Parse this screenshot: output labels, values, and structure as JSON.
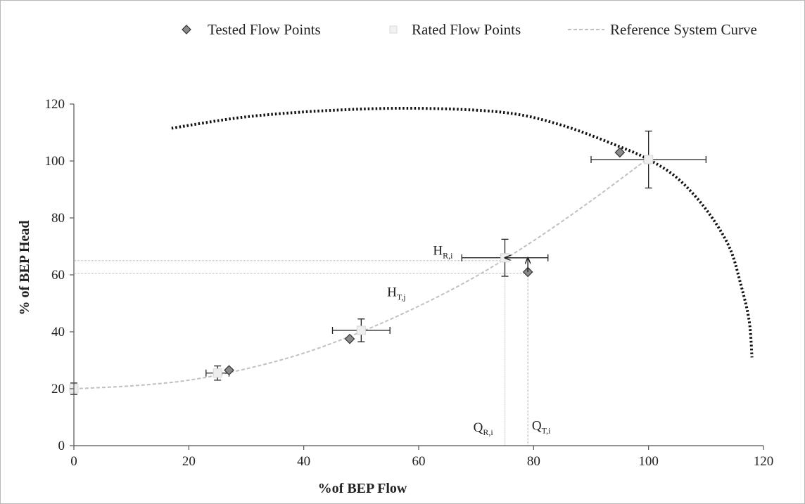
{
  "chart_data": {
    "type": "scatter",
    "xlabel": "%of BEP Flow",
    "ylabel": "% of BEP Head",
    "xlim": [
      0,
      120
    ],
    "ylim": [
      0,
      120
    ],
    "x_ticks": [
      0,
      20,
      40,
      60,
      80,
      100,
      120
    ],
    "y_ticks": [
      0,
      20,
      40,
      60,
      80,
      100,
      120
    ],
    "grid": false,
    "legend_position": "top",
    "series": [
      {
        "name": "Tested Flow Points",
        "marker": "diamond",
        "color": "#8a8a8a",
        "points": [
          {
            "x": 27,
            "y": 26.5
          },
          {
            "x": 48,
            "y": 37.5
          },
          {
            "x": 79,
            "y": 61
          },
          {
            "x": 95,
            "y": 103
          }
        ]
      },
      {
        "name": "Rated Flow Points",
        "marker": "square",
        "color": "#d8d8d8",
        "points": [
          {
            "x": 0,
            "y": 20,
            "x_err": 0,
            "y_err": 2
          },
          {
            "x": 25,
            "y": 25.5,
            "x_err": 2,
            "y_err": 2.5
          },
          {
            "x": 50,
            "y": 40.5,
            "x_err": 5,
            "y_err": 4
          },
          {
            "x": 75,
            "y": 66,
            "x_err": 7.5,
            "y_err": 6.5
          },
          {
            "x": 100,
            "y": 100.5,
            "x_err": 10,
            "y_err": 10
          }
        ]
      },
      {
        "name": "Reference System Curve",
        "line": "dashed",
        "color": "#c0c0c0",
        "points": [
          {
            "x": 0,
            "y": 20
          },
          {
            "x": 10,
            "y": 21
          },
          {
            "x": 20,
            "y": 23
          },
          {
            "x": 30,
            "y": 27
          },
          {
            "x": 40,
            "y": 32.5
          },
          {
            "x": 50,
            "y": 40
          },
          {
            "x": 60,
            "y": 49
          },
          {
            "x": 70,
            "y": 59.5
          },
          {
            "x": 80,
            "y": 72
          },
          {
            "x": 90,
            "y": 86
          },
          {
            "x": 100,
            "y": 101
          }
        ]
      }
    ],
    "pump_curve": {
      "line": "dotted",
      "color": "#111111",
      "points": [
        {
          "x": 17,
          "y": 111.5
        },
        {
          "x": 30,
          "y": 115.5
        },
        {
          "x": 45,
          "y": 117.8
        },
        {
          "x": 60,
          "y": 118.5
        },
        {
          "x": 75,
          "y": 117
        },
        {
          "x": 85,
          "y": 112.5
        },
        {
          "x": 95,
          "y": 105
        },
        {
          "x": 100,
          "y": 100.5
        },
        {
          "x": 105,
          "y": 94
        },
        {
          "x": 110,
          "y": 83
        },
        {
          "x": 114,
          "y": 70
        },
        {
          "x": 116,
          "y": 57
        },
        {
          "x": 117.5,
          "y": 44
        },
        {
          "x": 118,
          "y": 31
        }
      ]
    },
    "reference_lines": {
      "h_lines": [
        65,
        60.5
      ],
      "v_lines": [
        75,
        79
      ]
    },
    "arrows": [
      {
        "from": {
          "x": 79,
          "y": 61
        },
        "to": {
          "x": 79,
          "y": 66
        }
      },
      {
        "from": {
          "x": 79,
          "y": 66
        },
        "to": {
          "x": 75,
          "y": 66
        }
      }
    ],
    "annotations": [
      {
        "main": "H",
        "sub": "R,i",
        "x": 62.5,
        "y": 67
      },
      {
        "main": "H",
        "sub": "T,j",
        "x": 54.5,
        "y": 52.5
      },
      {
        "main": "Q",
        "sub": "R,i",
        "x": 69.5,
        "y": 5
      },
      {
        "main": "Q",
        "sub": "T,i",
        "x": 79.7,
        "y": 5.5
      }
    ]
  }
}
